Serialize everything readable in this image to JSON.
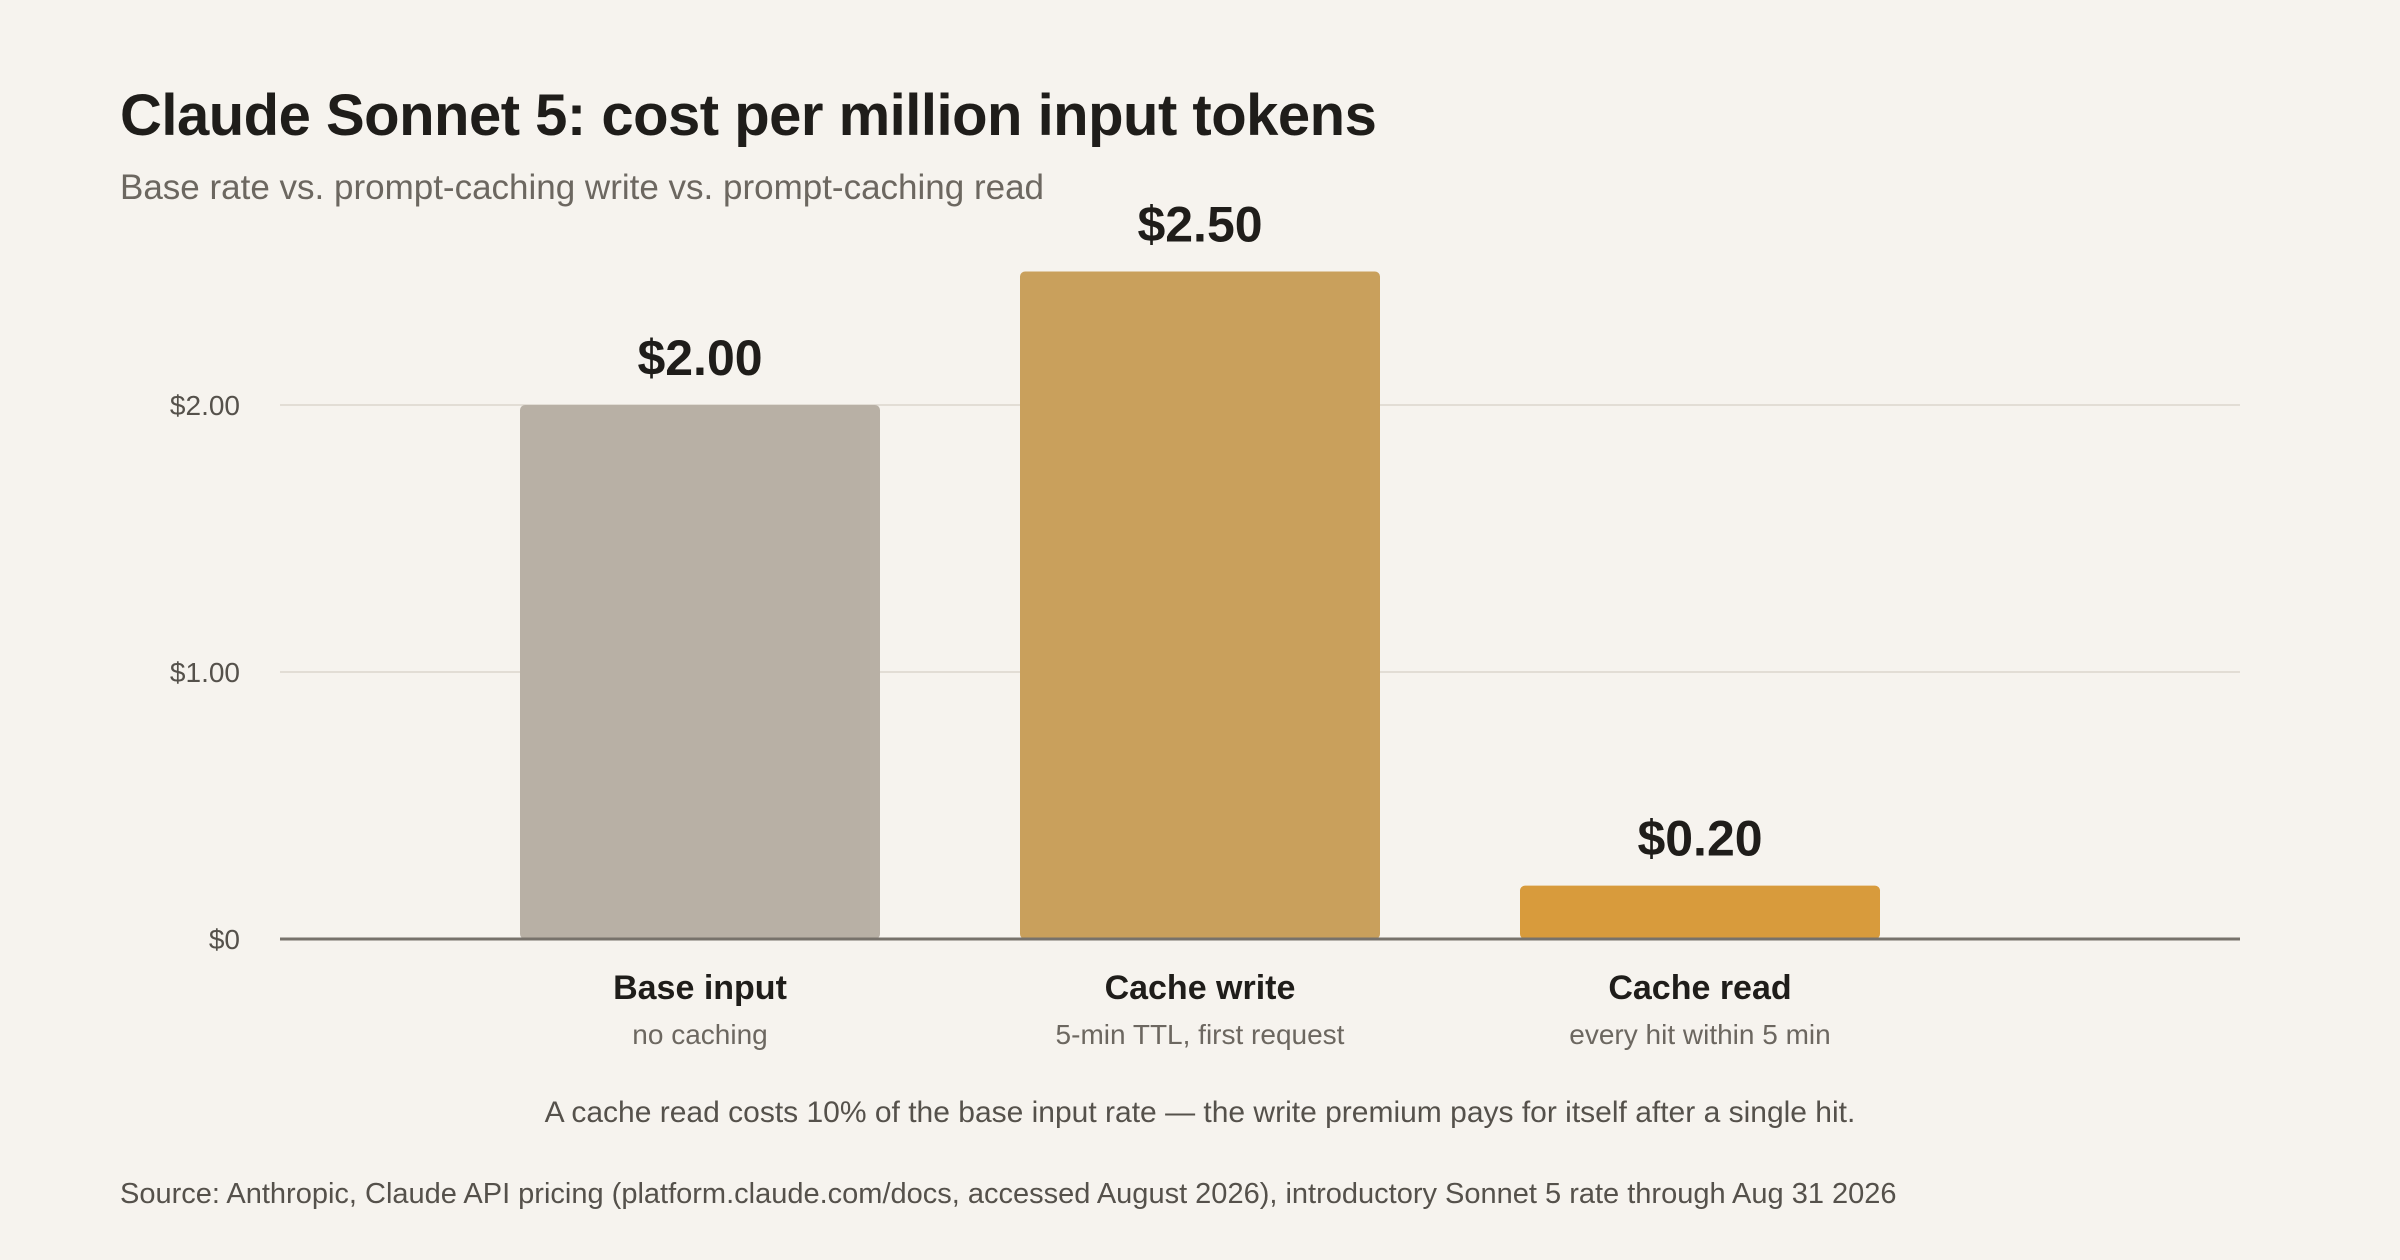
{
  "header": {
    "title": "Claude Sonnet 5: cost per million input tokens",
    "subtitle": "Base rate vs. prompt-caching write vs. prompt-caching read"
  },
  "chart_data": {
    "type": "bar",
    "categories": [
      "Base input",
      "Cache write",
      "Cache read"
    ],
    "category_sublabels": [
      "no caching",
      "5-min TTL, first request",
      "every hit within 5 min"
    ],
    "values": [
      2.0,
      2.5,
      0.2
    ],
    "value_labels": [
      "$2.00",
      "$2.50",
      "$0.20"
    ],
    "bar_colors": [
      "#b8b0a5",
      "#c9a05c",
      "#d89b3c"
    ],
    "y_ticks": [
      0,
      1,
      2
    ],
    "y_tick_labels": [
      "$0",
      "$1.00",
      "$2.00"
    ],
    "ylim": [
      0,
      2.5
    ],
    "grid": true,
    "xlabel": "",
    "ylabel": ""
  },
  "footer": {
    "note": "A cache read costs 10% of the base input rate — the write premium pays for itself after a single hit.",
    "source": "Source: Anthropic, Claude API pricing (platform.claude.com/docs, accessed August 2026), introductory Sonnet 5 rate through Aug 31 2026"
  }
}
